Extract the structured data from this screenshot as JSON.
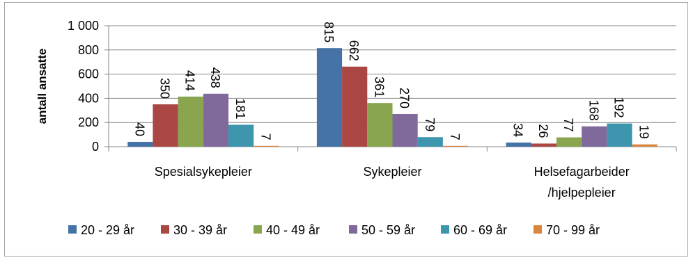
{
  "chart_data": {
    "type": "bar",
    "title": "",
    "xlabel": "",
    "ylabel": "antall ansatte",
    "ylim": [
      0,
      1000
    ],
    "yticks": [
      0,
      200,
      400,
      600,
      800,
      1000
    ],
    "ytick_labels": [
      "0",
      "200",
      "400",
      "600",
      "800",
      "1 000"
    ],
    "categories": [
      [
        "Spesialsykepleier"
      ],
      [
        "Sykepleier"
      ],
      [
        "Helsefagarbeider",
        "/hjelpepleier"
      ]
    ],
    "series": [
      {
        "name": "20 - 29 år",
        "color": "#4572a7",
        "values": [
          40,
          815,
          34
        ]
      },
      {
        "name": "30 - 39 år",
        "color": "#aa4643",
        "values": [
          350,
          662,
          26
        ]
      },
      {
        "name": "40 - 49 år",
        "color": "#89a54e",
        "values": [
          414,
          361,
          77
        ]
      },
      {
        "name": "50 - 59 år",
        "color": "#80699b",
        "values": [
          438,
          270,
          168
        ]
      },
      {
        "name": "60 - 69 år",
        "color": "#3d96ae",
        "values": [
          181,
          79,
          192
        ]
      },
      {
        "name": "70 - 99 år",
        "color": "#db843d",
        "values": [
          7,
          7,
          19
        ]
      }
    ],
    "gridlines": true,
    "legend_position": "bottom",
    "data_labels_rotated": true
  }
}
